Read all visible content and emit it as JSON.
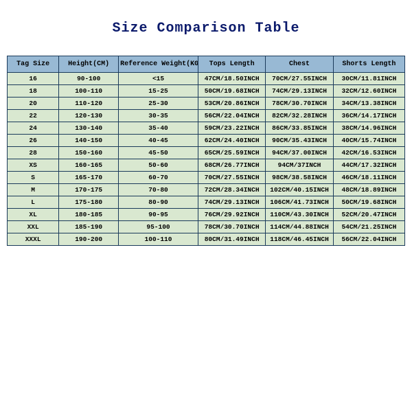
{
  "title": "Size Comparison Table",
  "table": {
    "columns": [
      "Tag Size",
      "Height(CM)",
      "Reference Weight(KG)",
      "Tops Length",
      "Chest",
      "Shorts Length"
    ],
    "header_bg": "#98b9d4",
    "cell_bg": "#d9e8d0",
    "border_color": "#1a3a5a",
    "title_color": "#0b1a6b",
    "title_fontsize": 20,
    "header_fontsize": 10,
    "cell_fontsize": 9.5,
    "col_widths_pct": [
      13,
      15,
      20,
      17,
      17,
      18
    ],
    "rows": [
      [
        "16",
        "90-100",
        "<15",
        "47CM/18.50INCH",
        "70CM/27.55INCH",
        "30CM/11.81INCH"
      ],
      [
        "18",
        "100-110",
        "15-25",
        "50CM/19.68INCH",
        "74CM/29.13INCH",
        "32CM/12.60INCH"
      ],
      [
        "20",
        "110-120",
        "25-30",
        "53CM/20.86INCH",
        "78CM/30.70INCH",
        "34CM/13.38INCH"
      ],
      [
        "22",
        "120-130",
        "30-35",
        "56CM/22.04INCH",
        "82CM/32.28INCH",
        "36CM/14.17INCH"
      ],
      [
        "24",
        "130-140",
        "35-40",
        "59CM/23.22INCH",
        "86CM/33.85INCH",
        "38CM/14.96INCH"
      ],
      [
        "26",
        "140-150",
        "40-45",
        "62CM/24.40INCH",
        "90CM/35.43INCH",
        "40CM/15.74INCH"
      ],
      [
        "28",
        "150-160",
        "45-50",
        "65CM/25.59INCH",
        "94CM/37.00INCH",
        "42CM/16.53INCH"
      ],
      [
        "XS",
        "160-165",
        "50-60",
        "68CM/26.77INCH",
        "94CM/37INCH",
        "44CM/17.32INCH"
      ],
      [
        "S",
        "165-170",
        "60-70",
        "70CM/27.55INCH",
        "98CM/38.58INCH",
        "46CM/18.11INCH"
      ],
      [
        "M",
        "170-175",
        "70-80",
        "72CM/28.34INCH",
        "102CM/40.15INCH",
        "48CM/18.89INCH"
      ],
      [
        "L",
        "175-180",
        "80-90",
        "74CM/29.13INCH",
        "106CM/41.73INCH",
        "50CM/19.68INCH"
      ],
      [
        "XL",
        "180-185",
        "90-95",
        "76CM/29.92INCH",
        "110CM/43.30INCH",
        "52CM/20.47INCH"
      ],
      [
        "XXL",
        "185-190",
        "95-100",
        "78CM/30.70INCH",
        "114CM/44.88INCH",
        "54CM/21.25INCH"
      ],
      [
        "XXXL",
        "190-200",
        "100-110",
        "80CM/31.49INCH",
        "118CM/46.45INCH",
        "56CM/22.04INCH"
      ]
    ]
  }
}
